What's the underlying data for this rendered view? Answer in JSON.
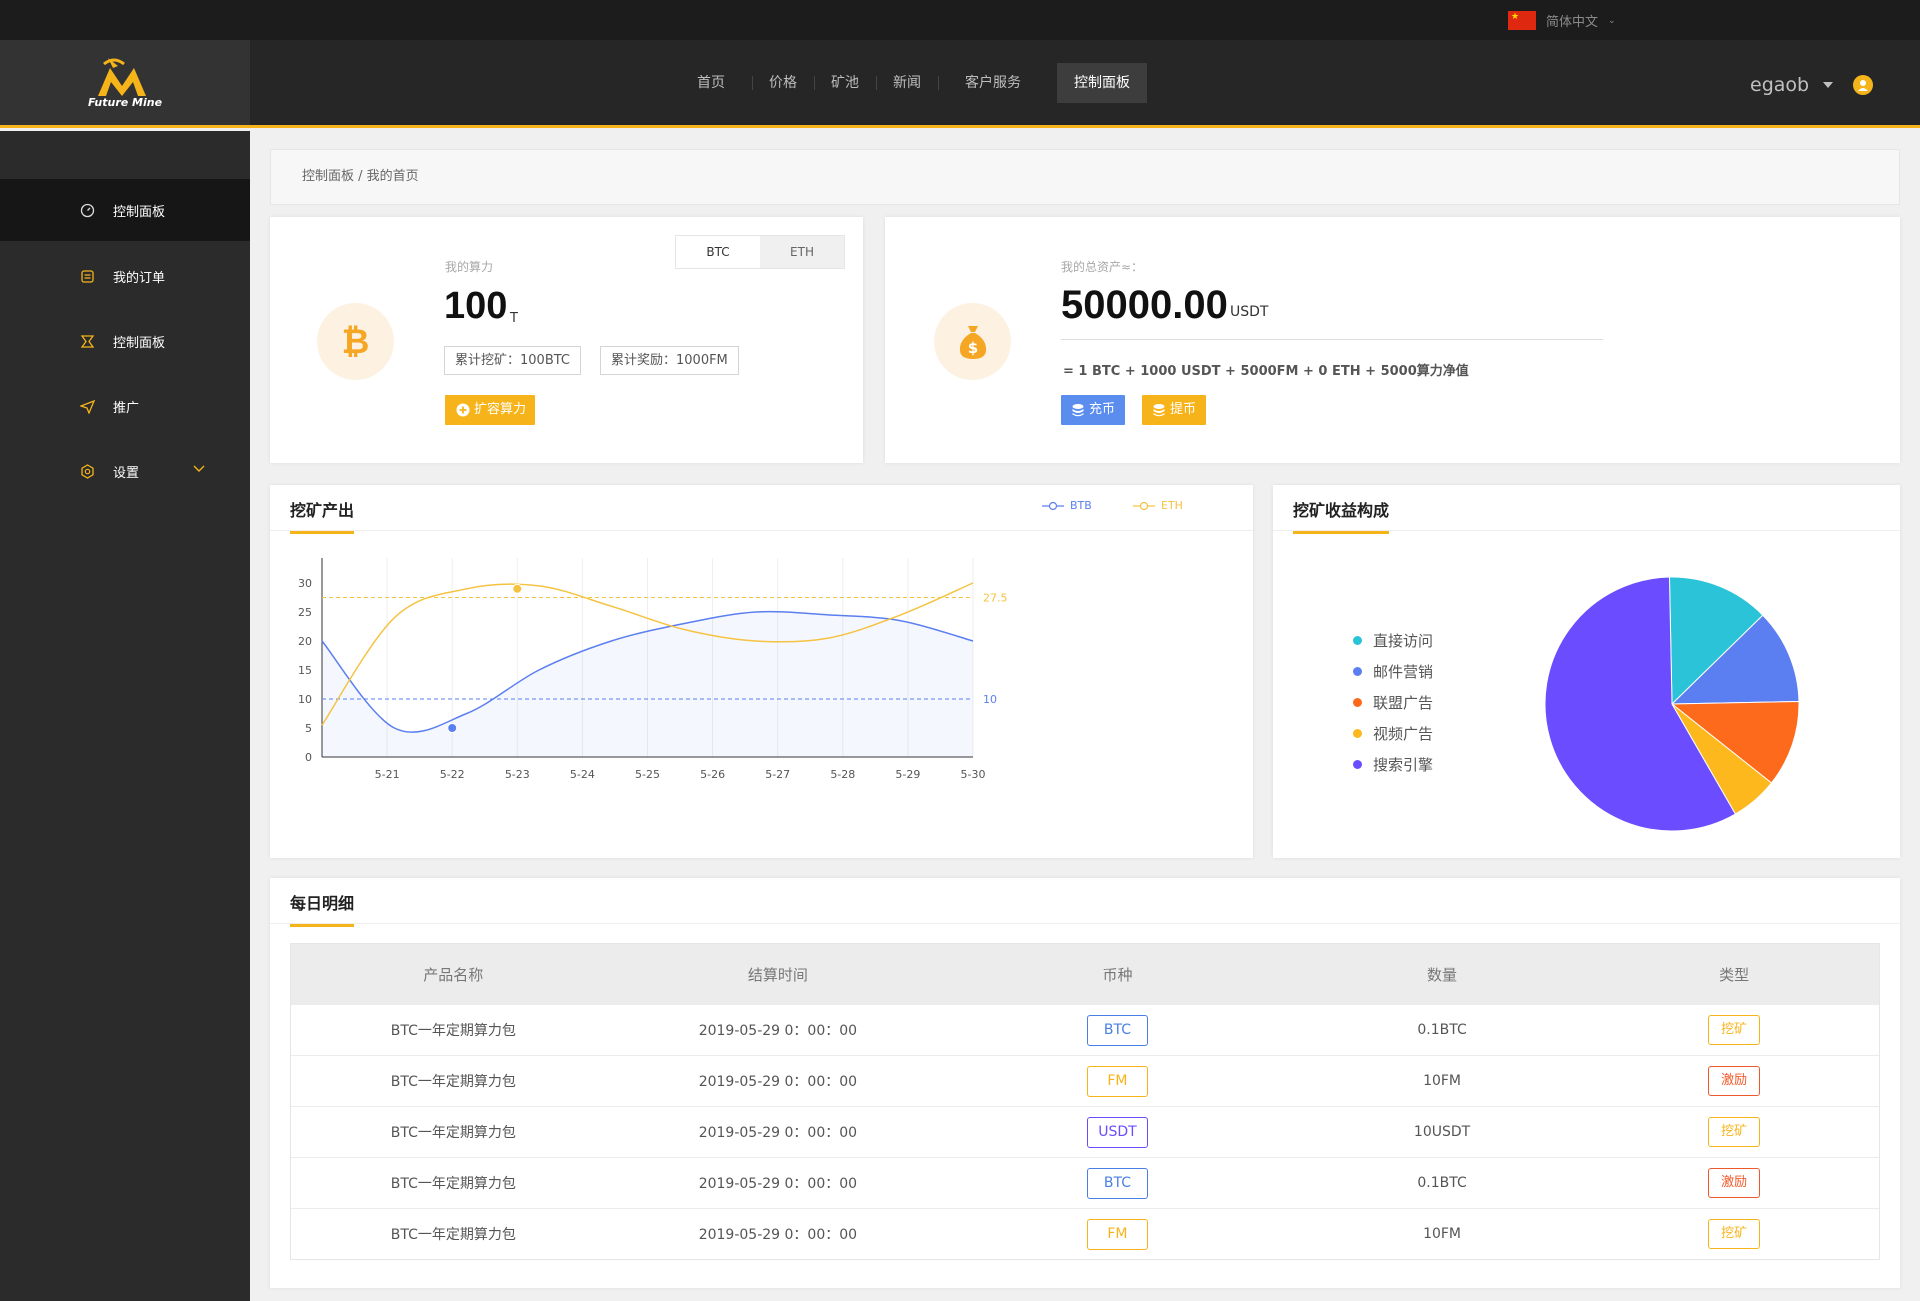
{
  "topbar": {
    "language": "简体中文"
  },
  "logo": {
    "text": "Future Mine"
  },
  "nav": [
    "首页",
    "价格",
    "矿池",
    "新闻",
    "客户服务",
    "控制面板"
  ],
  "user": {
    "name": "egaob"
  },
  "sidebar": {
    "items": [
      {
        "label": "控制面板",
        "icon": "dashboard-icon",
        "active": true
      },
      {
        "label": "我的订单",
        "icon": "order-icon"
      },
      {
        "label": "控制面板",
        "icon": "panel-icon"
      },
      {
        "label": "推广",
        "icon": "send-icon"
      },
      {
        "label": "设置",
        "icon": "settings-icon"
      }
    ]
  },
  "breadcrumb": "控制面板 / 我的首页",
  "hash_card": {
    "tabs": [
      "BTC",
      "ETH"
    ],
    "label": "我的算力",
    "value": "100",
    "unit": "T",
    "mined": "累计挖矿：100BTC",
    "reward": "累计奖励：1000FM",
    "expand_button": "扩容算力"
  },
  "assets_card": {
    "label": "我的总资产≈：",
    "value": "50000.00",
    "unit": "USDT",
    "breakdown": "= 1 BTC + 1000 USDT + 5000FM + 0 ETH + 5000算力净值",
    "deposit_button": "充币",
    "withdraw_button": "提币"
  },
  "mining_chart": {
    "title": "挖矿产出",
    "legend": [
      "BTB",
      "ETH"
    ],
    "colors": {
      "btb": "#5b7ff0",
      "eth": "#f5c342"
    }
  },
  "pie_chart": {
    "title": "挖矿收益构成"
  },
  "chart_data": [
    {
      "type": "line",
      "x": [
        "5-21",
        "5-22",
        "5-23",
        "5-24",
        "5-25",
        "5-26",
        "5-27",
        "5-28",
        "5-29",
        "5-30"
      ],
      "series": [
        {
          "name": "BTB",
          "values": [
            20,
            5,
            7.5,
            15,
            20,
            23,
            25,
            24.5,
            23.5,
            20
          ],
          "markline": 10,
          "markline_label": "10",
          "marked_point": {
            "x": "5-22",
            "y": 5
          }
        },
        {
          "name": "ETH",
          "values": [
            5.5,
            24,
            29,
            29.5,
            26,
            22,
            20,
            20.5,
            24.5,
            30
          ],
          "markline": 27.5,
          "markline_label": "27.5",
          "marked_point": {
            "x": "5-23",
            "y": 29
          }
        }
      ],
      "ylim": [
        0,
        30
      ],
      "yticks": [
        0,
        5,
        10,
        15,
        20,
        25,
        30
      ],
      "grid": true,
      "legend_position": "top-right"
    },
    {
      "type": "pie",
      "labels": [
        "直接访问",
        "邮件营销",
        "联盟广告",
        "视频广告",
        "搜索引擎"
      ],
      "values": [
        13,
        12,
        11,
        6,
        58
      ],
      "colors": [
        "#2bc3d8",
        "#5b7ff0",
        "#fd6a1c",
        "#fdb81d",
        "#6b4dff"
      ],
      "legend_position": "left"
    }
  ],
  "daily": {
    "title": "每日明细",
    "headers": [
      "产品名称",
      "结算时间",
      "币种",
      "数量",
      "类型"
    ],
    "rows": [
      {
        "name": "BTC一年定期算力包",
        "time": "2019-05-29 0：00：00",
        "coin": "BTC",
        "amount": "0.1BTC",
        "type": "挖矿"
      },
      {
        "name": "BTC一年定期算力包",
        "time": "2019-05-29 0：00：00",
        "coin": "FM",
        "amount": "10FM",
        "type": "激励"
      },
      {
        "name": "BTC一年定期算力包",
        "time": "2019-05-29 0：00：00",
        "coin": "USDT",
        "amount": "10USDT",
        "type": "挖矿"
      },
      {
        "name": "BTC一年定期算力包",
        "time": "2019-05-29 0：00：00",
        "coin": "BTC",
        "amount": "0.1BTC",
        "type": "激励"
      },
      {
        "name": "BTC一年定期算力包",
        "time": "2019-05-29 0：00：00",
        "coin": "FM",
        "amount": "10FM",
        "type": "挖矿"
      }
    ],
    "coin_colors": {
      "BTC": "#4a7fe6",
      "FM": "#f7b41a",
      "USDT": "#6b4dff"
    },
    "type_colors": {
      "挖矿": "#f7b41a",
      "激励": "#f0592a"
    }
  }
}
